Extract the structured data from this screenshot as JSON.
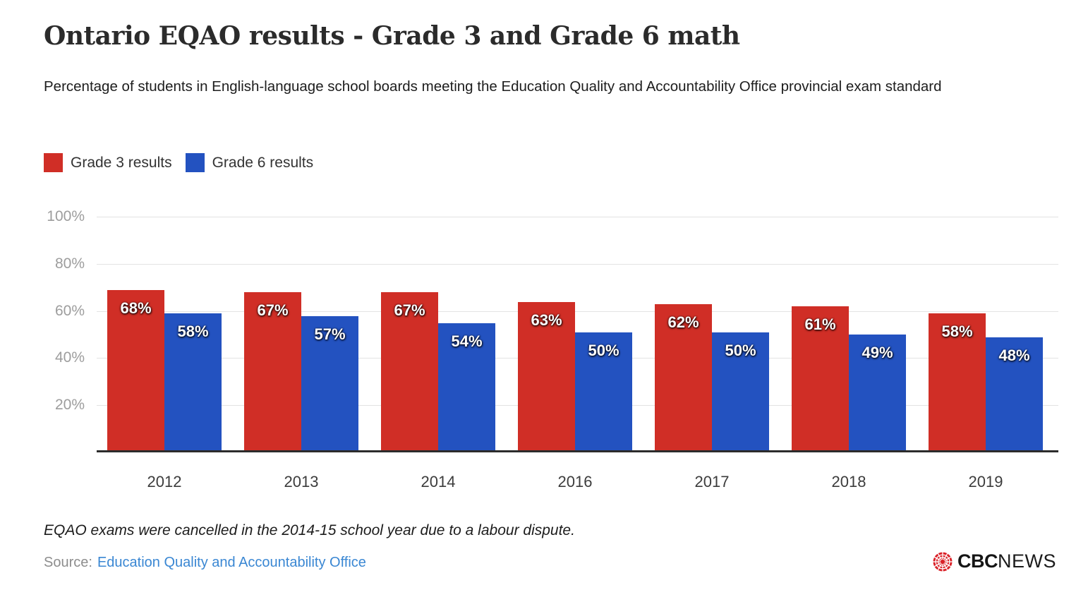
{
  "page": {
    "title": "Ontario EQAO results - Grade 3 and Grade 6 math",
    "subtitle": "Percentage of students in English-language school boards meeting the Education Quality and Accountability Office provincial exam standard",
    "footnote": "EQAO exams were cancelled in the 2014-15 school year due to a labour dispute.",
    "source_label": "Source:",
    "source_link": "Education Quality and Accountability Office",
    "source_link_color": "#3a87d3",
    "logo": {
      "cbc": "CBC",
      "news": "NEWS",
      "gem_color": "#da2128"
    }
  },
  "legend": [
    {
      "label": "Grade 3 results",
      "color": "#d02e26"
    },
    {
      "label": "Grade 6 results",
      "color": "#2352c0"
    }
  ],
  "chart_data": {
    "type": "bar",
    "title": "Ontario EQAO results - Grade 3 and Grade 6 math",
    "subtitle": "Percentage of students in English-language school boards meeting the Education Quality and Accountability Office provincial exam standard",
    "categories": [
      "2012",
      "2013",
      "2014",
      "2016",
      "2017",
      "2018",
      "2019"
    ],
    "series": [
      {
        "name": "Grade 3 results",
        "color": "#d02e26",
        "values": [
          68,
          67,
          67,
          63,
          62,
          61,
          58
        ]
      },
      {
        "name": "Grade 6 results",
        "color": "#2352c0",
        "values": [
          58,
          57,
          54,
          50,
          50,
          49,
          48
        ]
      }
    ],
    "value_suffix": "%",
    "y_ticks": [
      "100%",
      "80%",
      "60%",
      "40%",
      "20%"
    ],
    "ylim": [
      0,
      100
    ],
    "grid": "horizontal",
    "legend_position": "top-left",
    "bar_labels": "inside-top",
    "xlabel": "",
    "ylabel": ""
  }
}
